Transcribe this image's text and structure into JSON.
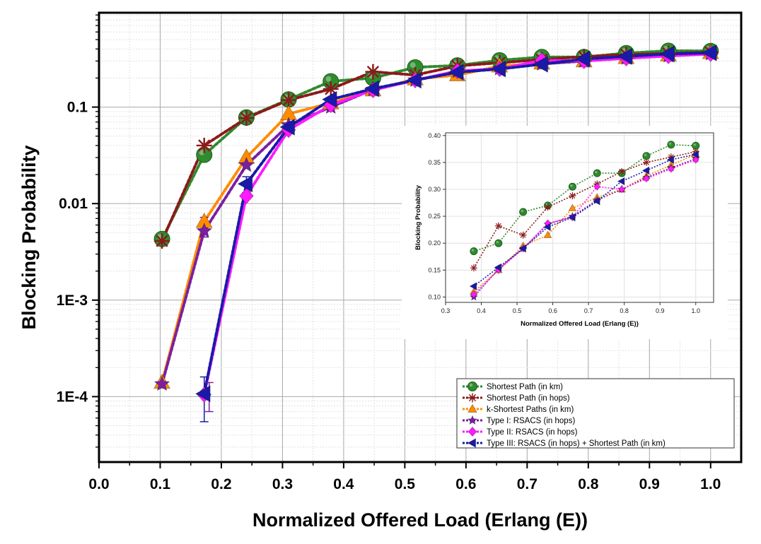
{
  "chart_data": [
    {
      "type": "scatter",
      "title": "",
      "xlabel": "Normalized Offered Load (Erlang (E))",
      "ylabel": "Blocking Probability",
      "yscale": "log",
      "xlim": [
        0.0,
        1.05
      ],
      "ylim": [
        2.1e-05,
        0.95
      ],
      "x_ticks": [
        "0.0",
        "0.1",
        "0.2",
        "0.3",
        "0.4",
        "0.5",
        "0.6",
        "0.7",
        "0.8",
        "0.9",
        "1.0"
      ],
      "y_ticks": [
        {
          "value": 0.1,
          "label": "0.1"
        },
        {
          "value": 0.01,
          "label": "0.01"
        },
        {
          "value": 0.001,
          "label": "1E-3"
        },
        {
          "value": 0.0001,
          "label": "1E-4"
        }
      ],
      "grid": true,
      "legend_position": "bottom-right",
      "series": [
        {
          "name": "Shortest Path (in km)",
          "color": "#2e8b2e",
          "marker": "circle",
          "x": [
            0.103,
            0.172,
            0.241,
            0.31,
            0.379,
            0.448,
            0.517,
            0.586,
            0.655,
            0.724,
            0.793,
            0.862,
            0.931,
            1.0
          ],
          "y": [
            0.0043,
            0.032,
            0.078,
            0.12,
            0.185,
            0.2,
            0.258,
            0.27,
            0.305,
            0.33,
            0.33,
            0.362,
            0.383,
            0.381
          ]
        },
        {
          "name": "Shortest Path (in hops)",
          "color": "#8b1a1a",
          "marker": "asterisk",
          "x": [
            0.103,
            0.172,
            0.241,
            0.31,
            0.379,
            0.448,
            0.517,
            0.586,
            0.655,
            0.724,
            0.793,
            0.862,
            0.931,
            1.0
          ],
          "y": [
            0.0041,
            0.04,
            0.077,
            0.118,
            0.154,
            0.232,
            0.215,
            0.267,
            0.288,
            0.31,
            0.333,
            0.35,
            0.36,
            0.37
          ]
        },
        {
          "name": "k-Shortest Paths (in km)",
          "color": "#ff8c00",
          "marker": "triangle",
          "x": [
            0.103,
            0.172,
            0.241,
            0.31,
            0.379,
            0.448,
            0.517,
            0.586,
            0.655,
            0.724,
            0.793,
            0.862,
            0.931,
            1.0
          ],
          "y": [
            0.00014,
            0.0065,
            0.03,
            0.085,
            0.11,
            0.15,
            0.195,
            0.215,
            0.265,
            0.285,
            0.3,
            0.325,
            0.345,
            0.365
          ]
        },
        {
          "name": "Type I: RSACS (in hops)",
          "color": "#7b1fa2",
          "marker": "star",
          "x": [
            0.103,
            0.172,
            0.241,
            0.31,
            0.379,
            0.448,
            0.517,
            0.586,
            0.655,
            0.724,
            0.793,
            0.862,
            0.931,
            1.0
          ],
          "y": [
            0.000135,
            0.0052,
            0.025,
            0.065,
            0.1,
            0.152,
            0.19,
            0.235,
            0.25,
            0.28,
            0.3,
            0.322,
            0.34,
            0.357
          ]
        },
        {
          "name": "Type II: RSACS (in hops)",
          "color": "#ff1aff",
          "marker": "diamond",
          "x": [
            0.172,
            0.241,
            0.31,
            0.379,
            0.448,
            0.517,
            0.586,
            0.655,
            0.724,
            0.793,
            0.862,
            0.931,
            1.0
          ],
          "y": [
            0.000105,
            0.012,
            0.058,
            0.105,
            0.15,
            0.19,
            0.237,
            0.248,
            0.305,
            0.3,
            0.32,
            0.338,
            0.355
          ]
        },
        {
          "name": "Type III: RSACS (in hops) + Shortest Path (in km)",
          "color": "#1a1aa8",
          "marker": "triangle-left",
          "x": [
            0.172,
            0.241,
            0.31,
            0.379,
            0.448,
            0.517,
            0.586,
            0.655,
            0.724,
            0.793,
            0.862,
            0.931,
            1.0
          ],
          "y": [
            0.000107,
            0.016,
            0.062,
            0.12,
            0.155,
            0.19,
            0.23,
            0.248,
            0.278,
            0.315,
            0.335,
            0.355,
            0.365
          ]
        }
      ]
    },
    {
      "type": "scatter",
      "title": "",
      "xlabel": "Normalized Offered Load (Erlang (E))",
      "ylabel": "Blocking Probability",
      "xlim": [
        0.3,
        1.05
      ],
      "ylim": [
        0.09,
        0.405
      ],
      "x_ticks": [
        "0.3",
        "0.4",
        "0.5",
        "0.6",
        "0.7",
        "0.8",
        "0.9",
        "1.0"
      ],
      "y_ticks": [
        "0.10",
        "0.15",
        "0.20",
        "0.25",
        "0.30",
        "0.35",
        "0.40"
      ],
      "grid": true,
      "note": "inset: same series for loads 0.379 to 1.0"
    }
  ]
}
